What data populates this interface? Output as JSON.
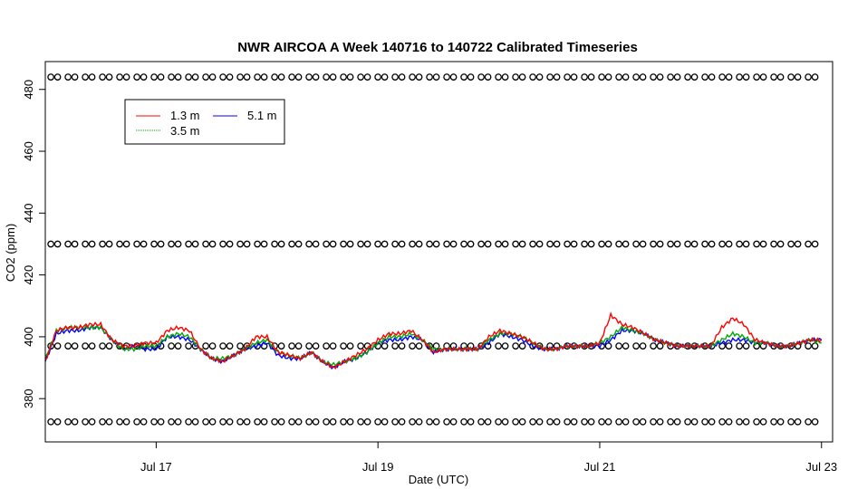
{
  "chart_data": {
    "type": "line",
    "title": "NWR AIRCOA A  Week 140716 to 140722  Calibrated Timeseries",
    "xlabel": "Date (UTC)",
    "ylabel": "CO2 (ppm)",
    "x_tick_labels": [
      "Jul 17",
      "Jul 19",
      "Jul 21",
      "Jul 23"
    ],
    "x_tick_values_days": [
      17,
      19,
      21,
      23
    ],
    "xlim_days": [
      16.0,
      23.1
    ],
    "y_tick_labels": [
      "380",
      "400",
      "420",
      "440",
      "460",
      "480"
    ],
    "y_tick_values": [
      380,
      400,
      420,
      440,
      460,
      480
    ],
    "ylim": [
      366,
      489
    ],
    "legend": {
      "position": "top-left",
      "entries": [
        {
          "label": "1.3 m",
          "color": "#ff0000"
        },
        {
          "label": "3.5 m",
          "color": "#00aa00"
        },
        {
          "label": "5.1 m",
          "color": "#0000ff"
        }
      ]
    },
    "calibration_points": {
      "marker": "open-circle",
      "levels_ppm": [
        484,
        430,
        397,
        372.5
      ]
    },
    "series": [
      {
        "name": "5.1 m",
        "color": "#0000ff",
        "x_days": [
          16.0,
          16.1,
          16.2,
          16.3,
          16.4,
          16.5,
          16.6,
          16.7,
          16.8,
          16.9,
          17.0,
          17.1,
          17.2,
          17.3,
          17.4,
          17.5,
          17.6,
          17.7,
          17.8,
          17.9,
          18.0,
          18.1,
          18.2,
          18.3,
          18.4,
          18.5,
          18.6,
          18.7,
          18.8,
          18.9,
          19.0,
          19.1,
          19.2,
          19.3,
          19.4,
          19.5,
          19.6,
          19.7,
          19.8,
          19.9,
          20.0,
          20.1,
          20.2,
          20.3,
          20.4,
          20.5,
          20.6,
          20.7,
          20.8,
          20.9,
          21.0,
          21.1,
          21.2,
          21.3,
          21.4,
          21.5,
          21.6,
          21.7,
          21.8,
          21.9,
          22.0,
          22.1,
          22.2,
          22.3,
          22.4,
          22.5,
          22.6,
          22.7,
          22.8,
          22.9,
          23.0
        ],
        "values": [
          392,
          401,
          402,
          402,
          403,
          403,
          399,
          396,
          397,
          396,
          396,
          400,
          400,
          399,
          396,
          393,
          392,
          394,
          396,
          397,
          398,
          394,
          393,
          393,
          395,
          392,
          390,
          392,
          393,
          395,
          398,
          399,
          399,
          400,
          399,
          395,
          396,
          396,
          396,
          396,
          398,
          401,
          400,
          399,
          397,
          396,
          396,
          397,
          397,
          397,
          397,
          399,
          402,
          402,
          401,
          399,
          398,
          397,
          397,
          397,
          397,
          398,
          399,
          399,
          398,
          398,
          397,
          397,
          398,
          399,
          399
        ]
      },
      {
        "name": "3.5 m",
        "color": "#00aa00",
        "x_days": [
          16.0,
          16.1,
          16.2,
          16.3,
          16.4,
          16.5,
          16.6,
          16.7,
          16.8,
          16.9,
          17.0,
          17.1,
          17.2,
          17.3,
          17.4,
          17.5,
          17.6,
          17.7,
          17.8,
          17.9,
          18.0,
          18.1,
          18.2,
          18.3,
          18.4,
          18.5,
          18.6,
          18.7,
          18.8,
          18.9,
          19.0,
          19.1,
          19.2,
          19.3,
          19.4,
          19.5,
          19.6,
          19.7,
          19.8,
          19.9,
          20.0,
          20.1,
          20.2,
          20.3,
          20.4,
          20.5,
          20.6,
          20.7,
          20.8,
          20.9,
          21.0,
          21.1,
          21.2,
          21.3,
          21.4,
          21.5,
          21.6,
          21.7,
          21.8,
          21.9,
          22.0,
          22.1,
          22.2,
          22.3,
          22.4,
          22.5,
          22.6,
          22.7,
          22.8,
          22.9,
          23.0
        ],
        "values": [
          393,
          402,
          403,
          403,
          403,
          403,
          399,
          396,
          396,
          397,
          397,
          400,
          401,
          400,
          396,
          393,
          393,
          394,
          396,
          398,
          399,
          395,
          394,
          393,
          395,
          392,
          391,
          392,
          393,
          395,
          398,
          400,
          400,
          401,
          399,
          396,
          396,
          396,
          396,
          396,
          399,
          401,
          401,
          400,
          398,
          396,
          396,
          397,
          397,
          397,
          398,
          400,
          403,
          402,
          401,
          399,
          398,
          397,
          397,
          397,
          397,
          399,
          401,
          400,
          398,
          398,
          397,
          397,
          398,
          399,
          398
        ]
      },
      {
        "name": "1.3 m",
        "color": "#ff0000",
        "x_days": [
          16.0,
          16.1,
          16.2,
          16.3,
          16.4,
          16.5,
          16.6,
          16.7,
          16.8,
          16.9,
          17.0,
          17.1,
          17.2,
          17.3,
          17.4,
          17.5,
          17.6,
          17.7,
          17.8,
          17.9,
          18.0,
          18.1,
          18.2,
          18.3,
          18.4,
          18.5,
          18.6,
          18.7,
          18.8,
          18.9,
          19.0,
          19.1,
          19.2,
          19.3,
          19.4,
          19.5,
          19.6,
          19.7,
          19.8,
          19.9,
          20.0,
          20.1,
          20.2,
          20.3,
          20.4,
          20.5,
          20.6,
          20.7,
          20.8,
          20.9,
          21.0,
          21.1,
          21.2,
          21.3,
          21.4,
          21.5,
          21.6,
          21.7,
          21.8,
          21.9,
          22.0,
          22.1,
          22.2,
          22.3,
          22.4,
          22.5,
          22.6,
          22.7,
          22.8,
          22.9,
          23.0
        ],
        "values": [
          392,
          402,
          403,
          403,
          404,
          404,
          399,
          397,
          397,
          398,
          398,
          402,
          403,
          402,
          396,
          393,
          392,
          394,
          396,
          400,
          400,
          395,
          394,
          393,
          395,
          392,
          390,
          392,
          394,
          396,
          399,
          401,
          401,
          402,
          399,
          395,
          396,
          396,
          396,
          396,
          400,
          402,
          401,
          400,
          398,
          396,
          396,
          397,
          397,
          397,
          398,
          407,
          404,
          403,
          401,
          399,
          398,
          397,
          397,
          397,
          397,
          403,
          406,
          404,
          399,
          398,
          397,
          397,
          398,
          399,
          399
        ]
      }
    ]
  }
}
